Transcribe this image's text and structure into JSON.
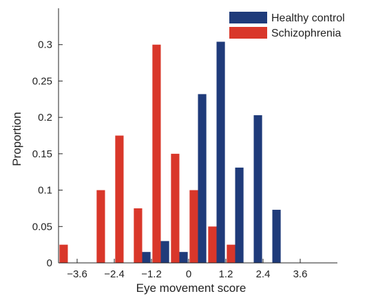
{
  "chart_data": {
    "type": "bar",
    "title": "",
    "xlabel": "Eye movement score",
    "ylabel": "Proportion",
    "xlim": [
      -4.2,
      4.8
    ],
    "ylim": [
      0,
      0.35
    ],
    "xticks": [
      -3.6,
      -2.4,
      -1.2,
      0,
      1.2,
      2.4,
      3.6
    ],
    "xtick_labels": [
      "−3.6",
      "−2.4",
      "−1.2",
      "0",
      "1.2",
      "2.4",
      "3.6"
    ],
    "yticks": [
      0,
      0.05,
      0.1,
      0.15,
      0.2,
      0.25,
      0.3
    ],
    "ytick_labels": [
      "0",
      "0.05",
      "0.1",
      "0.15",
      "0.2",
      "0.25",
      "0.3"
    ],
    "bin_centers": [
      -3.9,
      -3.3,
      -2.7,
      -2.1,
      -1.5,
      -0.9,
      -0.3,
      0.3,
      0.9,
      1.5,
      2.1,
      2.7,
      3.3,
      3.9
    ],
    "bar_width": 0.27,
    "grid": false,
    "legend_position": "top-right",
    "series": [
      {
        "name": "Healthy control",
        "color": "#1f3b7a",
        "values": [
          0,
          0,
          0,
          0,
          0.015,
          0.03,
          0.015,
          0.232,
          0.304,
          0.131,
          0.203,
          0.073,
          0,
          0
        ]
      },
      {
        "name": "Schizophrenia",
        "color": "#d9372a",
        "values": [
          0.025,
          0,
          0.1,
          0.175,
          0.075,
          0.3,
          0.15,
          0.1,
          0.05,
          0.025,
          0,
          0,
          0,
          0
        ]
      }
    ]
  }
}
